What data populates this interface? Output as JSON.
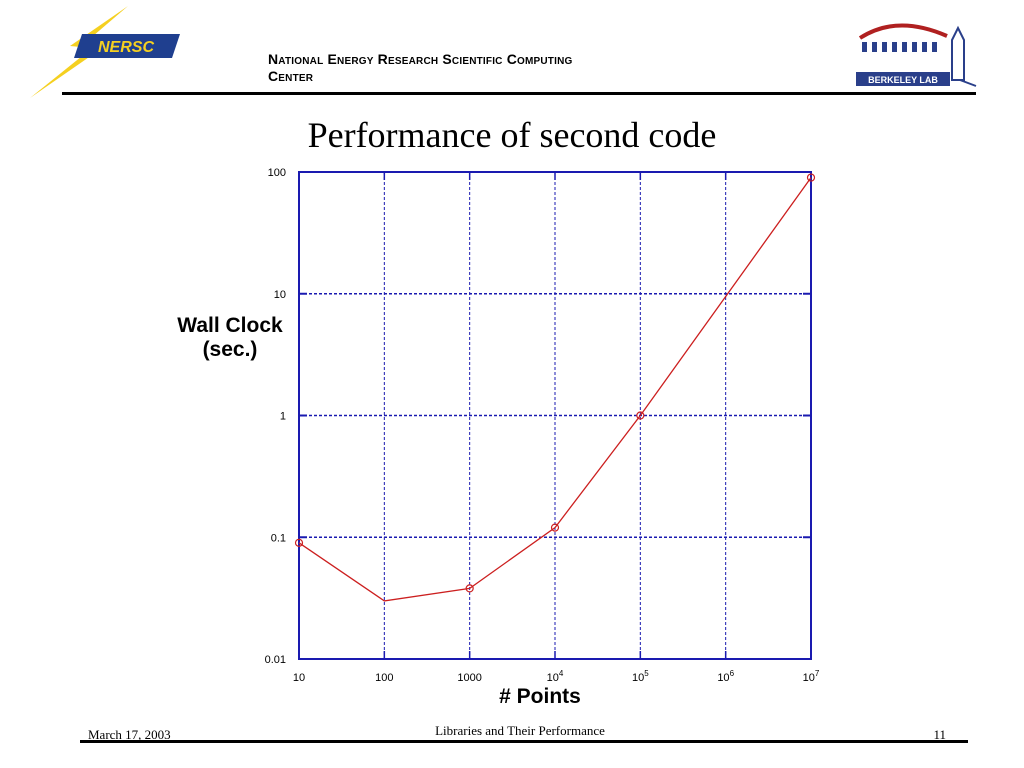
{
  "header": {
    "org_line1": "National Energy Research Scientific Computing",
    "org_line2": "Center",
    "nersc_logo_text": "NERSC",
    "berkeley_logo_text": "BERKELEY LAB"
  },
  "title": "Performance of second code",
  "footer": {
    "date": "March 17, 2003",
    "center": "Libraries and Their Performance",
    "page": "11"
  },
  "colors": {
    "grid": "#1a1ab0",
    "axis": "#1a1ab0",
    "series": "#cc1f1f",
    "nersc_yellow": "#f5d020",
    "nersc_blue": "#1f3f8f",
    "berkeley_blue": "#2a3f8a",
    "berkeley_red": "#b02020"
  },
  "chart_data": {
    "type": "line",
    "xscale": "log",
    "yscale": "log",
    "xlim": [
      10,
      10000000
    ],
    "ylim": [
      0.01,
      100
    ],
    "xlabel": "# Points",
    "ylabel": "Wall Clock (sec.)",
    "grid": true,
    "x_ticks": [
      {
        "value": 10,
        "base": "10",
        "exp": ""
      },
      {
        "value": 100,
        "base": "100",
        "exp": ""
      },
      {
        "value": 1000,
        "base": "1000",
        "exp": ""
      },
      {
        "value": 10000,
        "base": "10",
        "exp": "4"
      },
      {
        "value": 100000,
        "base": "10",
        "exp": "5"
      },
      {
        "value": 1000000,
        "base": "10",
        "exp": "6"
      },
      {
        "value": 10000000,
        "base": "10",
        "exp": "7"
      }
    ],
    "y_ticks": [
      {
        "value": 100,
        "label": "100"
      },
      {
        "value": 10,
        "label": "10"
      },
      {
        "value": 1,
        "label": "1"
      },
      {
        "value": 0.1,
        "label": "0.1"
      },
      {
        "value": 0.01,
        "label": "0.01"
      }
    ],
    "series": [
      {
        "x": [
          10,
          100,
          1000,
          10000,
          100000,
          10000000
        ],
        "y": [
          0.09,
          0.03,
          0.038,
          0.12,
          1.0,
          90
        ],
        "markers": [
          true,
          false,
          true,
          true,
          true,
          true
        ]
      }
    ]
  }
}
